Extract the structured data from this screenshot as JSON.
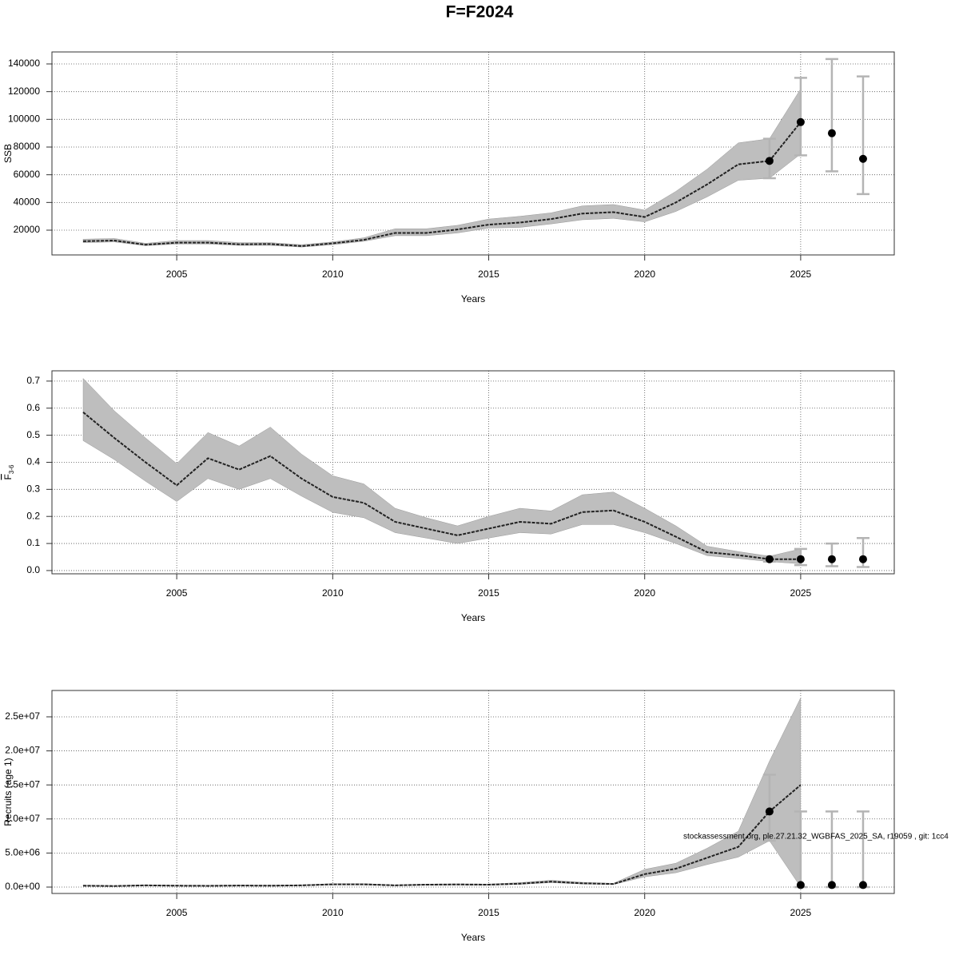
{
  "title": "F=F2024",
  "annotation": "stockassessment.org, ple.27.21.32_WGBFAS_2025_SA, r19059 , git: 1cc4",
  "chart_data": [
    {
      "type": "line",
      "xlabel": "Years",
      "ylabel": "SSB",
      "xlim": [
        2001,
        2028
      ],
      "xticks": [
        2005,
        2010,
        2015,
        2020,
        2025
      ],
      "ylim": [
        2120,
        148650
      ],
      "yticks": [
        20000,
        40000,
        60000,
        80000,
        100000,
        120000,
        140000
      ],
      "grid": true,
      "line_color": "#222222",
      "band_color": "#bebebe",
      "errorbar_color": "#b4b4b4",
      "x": [
        2002,
        2003,
        2004,
        2005,
        2006,
        2007,
        2008,
        2009,
        2010,
        2011,
        2012,
        2013,
        2014,
        2015,
        2016,
        2017,
        2018,
        2019,
        2020,
        2021,
        2022,
        2023,
        2024,
        2025
      ],
      "values": [
        12000,
        12500,
        9500,
        11000,
        11000,
        9800,
        10000,
        8500,
        10500,
        13000,
        18000,
        18000,
        20500,
        24000,
        25500,
        28000,
        32000,
        33000,
        29500,
        40000,
        53000,
        67500,
        70000,
        98000
      ],
      "low": [
        11000,
        11500,
        8800,
        10000,
        10000,
        9000,
        9000,
        7800,
        9500,
        12000,
        16000,
        16000,
        18000,
        21500,
        22000,
        24500,
        27500,
        28500,
        26000,
        33500,
        44000,
        56000,
        57500,
        75000
      ],
      "high": [
        13500,
        14000,
        10500,
        12500,
        12500,
        11000,
        11000,
        9500,
        11500,
        14500,
        21000,
        21000,
        23500,
        28000,
        30000,
        32500,
        37500,
        38500,
        34500,
        48000,
        64000,
        83000,
        86000,
        122000
      ],
      "forecast": {
        "x": [
          2024,
          2025,
          2026,
          2027
        ],
        "values": [
          70000,
          98000,
          90000,
          71500
        ],
        "low": [
          57500,
          74000,
          62500,
          46000
        ],
        "high": [
          86000,
          130000,
          143500,
          131000
        ]
      }
    },
    {
      "type": "line",
      "xlabel": "Years",
      "ylabel": "F",
      "ylabel_subscript": "3-6",
      "xlim": [
        2001,
        2028
      ],
      "xticks": [
        2005,
        2010,
        2015,
        2020,
        2025
      ],
      "ylim": [
        -0.012,
        0.738
      ],
      "yticks": [
        {
          "value": 0,
          "label": "0.0"
        },
        0.1,
        0.2,
        0.3,
        0.4,
        0.5,
        0.6,
        0.7
      ],
      "grid": true,
      "line_color": "#222222",
      "band_color": "#bebebe",
      "errorbar_color": "#b4b4b4",
      "x": [
        2002,
        2003,
        2004,
        2005,
        2006,
        2007,
        2008,
        2009,
        2010,
        2011,
        2012,
        2013,
        2014,
        2015,
        2016,
        2017,
        2018,
        2019,
        2020,
        2021,
        2022,
        2023,
        2024,
        2025
      ],
      "values": [
        0.585,
        0.49,
        0.4,
        0.315,
        0.415,
        0.373,
        0.423,
        0.34,
        0.272,
        0.25,
        0.18,
        0.155,
        0.13,
        0.155,
        0.18,
        0.173,
        0.216,
        0.222,
        0.18,
        0.125,
        0.068,
        0.057,
        0.042,
        0.042
      ],
      "low": [
        0.48,
        0.41,
        0.33,
        0.255,
        0.34,
        0.3,
        0.34,
        0.275,
        0.215,
        0.195,
        0.14,
        0.12,
        0.1,
        0.12,
        0.14,
        0.135,
        0.17,
        0.17,
        0.14,
        0.1,
        0.055,
        0.045,
        0.033,
        0.025
      ],
      "high": [
        0.71,
        0.59,
        0.49,
        0.395,
        0.51,
        0.46,
        0.53,
        0.43,
        0.35,
        0.32,
        0.23,
        0.195,
        0.165,
        0.2,
        0.23,
        0.22,
        0.28,
        0.29,
        0.23,
        0.165,
        0.09,
        0.07,
        0.053,
        0.08
      ],
      "forecast": {
        "x": [
          2024,
          2025,
          2026,
          2027
        ],
        "values": [
          0.042,
          0.042,
          0.042,
          0.042
        ],
        "low": [
          0.033,
          0.02,
          0.016,
          0.013
        ],
        "high": [
          0.053,
          0.08,
          0.1,
          0.12
        ]
      }
    },
    {
      "type": "line",
      "xlabel": "Years",
      "ylabel": "Recruits (age 1)",
      "xlim": [
        2001,
        2028
      ],
      "xticks": [
        2005,
        2010,
        2015,
        2020,
        2025
      ],
      "ylim": [
        -940000,
        28870000
      ],
      "yticks": [
        {
          "value": 0,
          "label": "0.0e+00"
        },
        {
          "value": 5000000,
          "label": "5.0e+06"
        },
        {
          "value": 10000000,
          "label": "1.0e+07"
        },
        {
          "value": 15000000,
          "label": "1.5e+07"
        },
        {
          "value": 20000000,
          "label": "2.0e+07"
        },
        {
          "value": 25000000,
          "label": "2.5e+07"
        }
      ],
      "grid": true,
      "line_color": "#222222",
      "band_color": "#bebebe",
      "errorbar_color": "#b4b4b4",
      "x": [
        2002,
        2003,
        2004,
        2005,
        2006,
        2007,
        2008,
        2009,
        2010,
        2011,
        2012,
        2013,
        2014,
        2015,
        2016,
        2017,
        2018,
        2019,
        2020,
        2021,
        2022,
        2023,
        2024,
        2025
      ],
      "values": [
        200000,
        150000,
        250000,
        200000,
        180000,
        220000,
        200000,
        250000,
        400000,
        400000,
        250000,
        350000,
        380000,
        350000,
        500000,
        800000,
        550000,
        450000,
        1900000,
        2700000,
        4300000,
        5900000,
        11100000,
        15000000
      ],
      "low": [
        130000,
        90000,
        180000,
        130000,
        110000,
        150000,
        130000,
        180000,
        320000,
        320000,
        180000,
        270000,
        300000,
        270000,
        400000,
        650000,
        450000,
        380000,
        1500000,
        2100000,
        3300000,
        4400000,
        6800000,
        0
      ],
      "high": [
        280000,
        220000,
        330000,
        280000,
        260000,
        300000,
        280000,
        330000,
        500000,
        500000,
        330000,
        440000,
        470000,
        440000,
        650000,
        1000000,
        700000,
        550000,
        2600000,
        3500000,
        5700000,
        8200000,
        18500000,
        27800000
      ],
      "forecast": {
        "x": [
          2024,
          2025,
          2026,
          2027
        ],
        "values": [
          11100000,
          300000,
          300000,
          300000
        ],
        "low": [
          6800000,
          0,
          0,
          0
        ],
        "high": [
          16500000,
          11100000,
          11100000,
          11100000
        ]
      }
    }
  ]
}
